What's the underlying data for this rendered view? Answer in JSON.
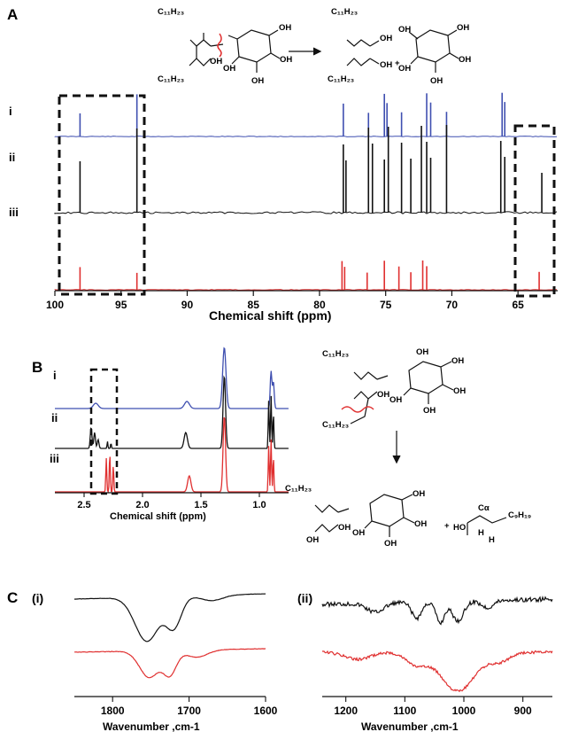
{
  "panels": {
    "A": {
      "letter": "A",
      "xlabel": "Chemical shift  (ppm)",
      "ticks": [
        "100",
        "95",
        "90",
        "85",
        "80",
        "75",
        "70",
        "65"
      ],
      "tick_values": [
        100,
        95,
        90,
        85,
        80,
        75,
        70,
        65
      ],
      "xrange": [
        100,
        62
      ],
      "trace_labels": [
        "i",
        "ii",
        "iii"
      ],
      "scheme": {
        "reactant_groups": [
          "C11H23",
          "C11H23"
        ],
        "acyl_labels": [
          "C₁₁H₂₃",
          "C₁₁H₂₃"
        ],
        "product_acyl_labels": [
          "C₁₁H₂₃",
          "C₁₁H₂₃"
        ],
        "plus": "+",
        "groups": [
          "OH",
          "OH",
          "OH",
          "OH",
          "OH",
          "OH",
          "OH",
          "OH",
          "OH",
          "OH",
          "OH",
          "OH",
          "OH",
          "OH",
          "OH",
          "OH"
        ]
      },
      "peaks": {
        "i": [
          98.1,
          93.8,
          78.2,
          76.3,
          75.1,
          74.9,
          73.8,
          71.9,
          71.6,
          70.4,
          66.2,
          66.0
        ],
        "ii": [
          98.1,
          93.8,
          78.2,
          78.0,
          76.3,
          76.0,
          75.1,
          74.8,
          73.8,
          73.1,
          72.3,
          71.9,
          71.6,
          70.4,
          66.3,
          66.0,
          63.2
        ],
        "iii": [
          98.1,
          93.8,
          78.3,
          78.1,
          76.4,
          75.1,
          74.0,
          73.1,
          72.2,
          71.9,
          63.4
        ]
      }
    },
    "B": {
      "letter": "B",
      "xlabel": "Chemical shift  (ppm)",
      "ticks": [
        "2.5",
        "2.0",
        "1.5",
        "1.0"
      ],
      "tick_values": [
        2.5,
        2.0,
        1.5,
        1.0
      ],
      "xrange": [
        2.75,
        0.75
      ],
      "trace_labels": [
        "i",
        "ii",
        "iii"
      ],
      "scheme": {
        "acyl_top": "C₁₁H₂₃",
        "acyl_cleaved": "C₁₁H₂₃",
        "acyl_product": "C₁₁H₂₃",
        "plus": "+",
        "calpha": "Cα",
        "chain": "C₉H₁₉",
        "h_labels": [
          "H",
          "H"
        ],
        "groups": [
          "OH",
          "OH",
          "OH",
          "OH",
          "OH",
          "OH",
          "OH",
          "OH",
          "OH",
          "OH",
          "OH",
          "OH",
          "HO"
        ]
      }
    },
    "C": {
      "letter": "C",
      "sub_i": {
        "label": "(i)",
        "xlabel": "Wavenumber ,cm-1",
        "ticks": [
          "1800",
          "1700",
          "1600"
        ],
        "tick_values": [
          1800,
          1700,
          1600
        ],
        "xrange": [
          1850,
          1600
        ]
      },
      "sub_ii": {
        "label": "(ii)",
        "xlabel": "Wavenumber ,cm-1",
        "ticks": [
          "1200",
          "1100",
          "1000",
          "900"
        ],
        "tick_values": [
          1200,
          1100,
          1000,
          900
        ],
        "xrange": [
          1240,
          850
        ]
      }
    }
  },
  "colors": {
    "blue": "#3f4fb0",
    "black": "#111111",
    "red": "#e03030",
    "grey": "#555555"
  }
}
